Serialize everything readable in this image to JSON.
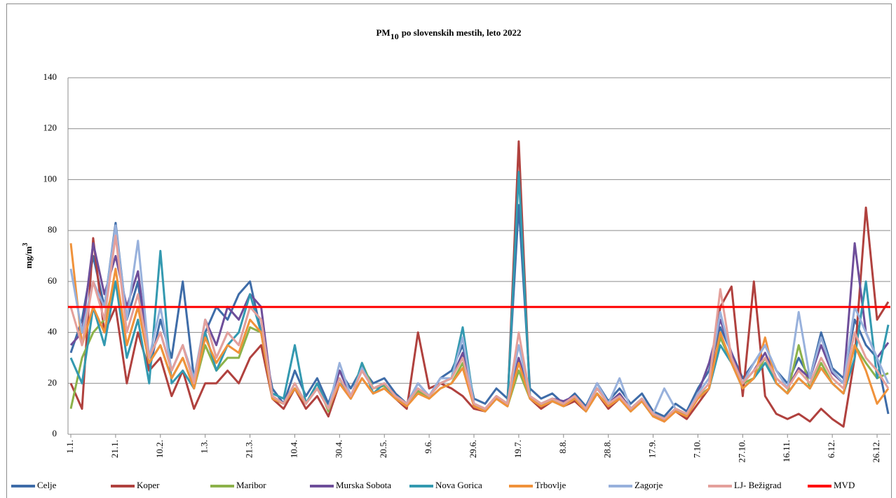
{
  "chart_data": {
    "type": "line",
    "title_parts": [
      "PM",
      "10",
      "po slovenskih mestih,  leto 2022"
    ],
    "y_label_parts": [
      "mg/m",
      "3"
    ],
    "ylim": [
      0,
      140
    ],
    "yticks": [
      0,
      20,
      40,
      60,
      80,
      100,
      120,
      140
    ],
    "categories": [
      "1.1.",
      null,
      null,
      null,
      "21.1.",
      null,
      null,
      null,
      "10.2.",
      null,
      null,
      null,
      "1.3.",
      null,
      null,
      null,
      "21.3.",
      null,
      null,
      null,
      "10.4.",
      null,
      null,
      null,
      "30.4.",
      null,
      null,
      null,
      "20.5.",
      null,
      null,
      null,
      "9.6.",
      null,
      null,
      null,
      "29.6.",
      null,
      null,
      null,
      "19.7.",
      null,
      null,
      null,
      "8.8.",
      null,
      null,
      null,
      "28.8.",
      null,
      null,
      null,
      "17.9.",
      null,
      null,
      null,
      "7.10.",
      null,
      null,
      null,
      "27.10.",
      null,
      null,
      null,
      "16.11.",
      null,
      null,
      null,
      "6.12.",
      null,
      null,
      null,
      "26.12.",
      null
    ],
    "series": [
      {
        "name": "Celje",
        "color": "#3e6ca8",
        "values": [
          32,
          45,
          70,
          50,
          83,
          45,
          60,
          25,
          45,
          30,
          60,
          22,
          40,
          50,
          45,
          55,
          60,
          40,
          18,
          12,
          25,
          15,
          22,
          12,
          25,
          18,
          26,
          20,
          22,
          16,
          12,
          20,
          15,
          22,
          25,
          35,
          14,
          12,
          18,
          14,
          90,
          18,
          14,
          16,
          12,
          16,
          11,
          20,
          13,
          18,
          12,
          16,
          9,
          7,
          12,
          9,
          18,
          25,
          42,
          32,
          22,
          28,
          35,
          25,
          20,
          30,
          22,
          40,
          26,
          22,
          45,
          35,
          30,
          8
        ]
      },
      {
        "name": "Koper",
        "color": "#b0413e",
        "values": [
          20,
          10,
          77,
          40,
          50,
          20,
          40,
          25,
          30,
          15,
          25,
          10,
          20,
          20,
          25,
          20,
          30,
          35,
          14,
          10,
          18,
          10,
          15,
          7,
          20,
          14,
          22,
          16,
          18,
          14,
          10,
          40,
          18,
          20,
          18,
          15,
          10,
          9,
          14,
          11,
          115,
          14,
          10,
          13,
          11,
          13,
          9,
          16,
          10,
          14,
          9,
          13,
          7,
          5,
          9,
          6,
          12,
          18,
          50,
          58,
          15,
          60,
          15,
          8,
          6,
          8,
          5,
          10,
          6,
          3,
          30,
          89,
          45,
          52
        ]
      },
      {
        "name": "Maribor",
        "color": "#8cb24a",
        "values": [
          10,
          30,
          40,
          45,
          60,
          35,
          50,
          28,
          35,
          22,
          30,
          18,
          35,
          25,
          30,
          30,
          42,
          40,
          14,
          12,
          18,
          12,
          20,
          9,
          22,
          14,
          28,
          18,
          19,
          14,
          11,
          17,
          14,
          18,
          20,
          28,
          11,
          9,
          14,
          11,
          25,
          14,
          11,
          13,
          11,
          14,
          9,
          16,
          11,
          14,
          9,
          13,
          7,
          6,
          9,
          8,
          15,
          18,
          38,
          28,
          20,
          22,
          30,
          20,
          16,
          35,
          18,
          28,
          20,
          16,
          35,
          28,
          22,
          24
        ]
      },
      {
        "name": "Murska Sobota",
        "color": "#6e4e9a",
        "values": [
          35,
          40,
          75,
          55,
          70,
          50,
          64,
          30,
          40,
          25,
          35,
          20,
          45,
          35,
          50,
          45,
          55,
          50,
          15,
          12,
          20,
          12,
          18,
          10,
          25,
          15,
          25,
          18,
          20,
          15,
          12,
          20,
          15,
          20,
          22,
          32,
          12,
          10,
          15,
          12,
          30,
          15,
          12,
          14,
          13,
          15,
          10,
          20,
          12,
          16,
          10,
          14,
          8,
          6,
          10,
          8,
          16,
          28,
          45,
          32,
          20,
          25,
          32,
          22,
          18,
          26,
          22,
          35,
          24,
          20,
          75,
          40,
          30,
          36
        ]
      },
      {
        "name": "Nova Gorica",
        "color": "#3399b0",
        "values": [
          30,
          20,
          50,
          35,
          60,
          30,
          45,
          20,
          72,
          20,
          25,
          18,
          40,
          25,
          35,
          40,
          55,
          40,
          16,
          14,
          35,
          12,
          20,
          10,
          22,
          14,
          28,
          16,
          20,
          14,
          12,
          18,
          15,
          20,
          22,
          42,
          12,
          10,
          14,
          12,
          103,
          15,
          12,
          14,
          12,
          14,
          10,
          18,
          12,
          15,
          10,
          14,
          8,
          6,
          10,
          8,
          14,
          18,
          35,
          28,
          18,
          22,
          28,
          20,
          16,
          22,
          18,
          26,
          20,
          16,
          30,
          60,
          22,
          43
        ]
      },
      {
        "name": "Trbovlje",
        "color": "#f0923a",
        "values": [
          75,
          35,
          50,
          40,
          65,
          35,
          50,
          28,
          35,
          22,
          30,
          18,
          38,
          28,
          35,
          32,
          45,
          40,
          14,
          12,
          18,
          12,
          18,
          10,
          20,
          14,
          22,
          16,
          18,
          14,
          11,
          16,
          14,
          18,
          20,
          26,
          11,
          9,
          14,
          11,
          28,
          14,
          11,
          13,
          11,
          14,
          9,
          16,
          11,
          14,
          9,
          13,
          7,
          5,
          9,
          7,
          14,
          18,
          40,
          28,
          18,
          22,
          38,
          20,
          16,
          22,
          18,
          26,
          20,
          16,
          35,
          25,
          12,
          18
        ]
      },
      {
        "name": "Zagorje",
        "color": "#98b1dc",
        "values": [
          65,
          40,
          60,
          50,
          82,
          45,
          76,
          30,
          50,
          25,
          35,
          22,
          45,
          30,
          40,
          35,
          50,
          45,
          15,
          12,
          20,
          12,
          18,
          10,
          28,
          15,
          26,
          18,
          20,
          15,
          12,
          20,
          15,
          22,
          22,
          38,
          12,
          10,
          15,
          12,
          35,
          15,
          12,
          14,
          12,
          15,
          10,
          20,
          12,
          22,
          10,
          14,
          8,
          18,
          10,
          8,
          16,
          22,
          48,
          30,
          20,
          28,
          35,
          25,
          18,
          48,
          22,
          38,
          25,
          20,
          50,
          40,
          30,
          20
        ]
      },
      {
        "name": "LJ- Bežigrad",
        "color": "#e4a09b",
        "values": [
          50,
          35,
          60,
          45,
          78,
          40,
          55,
          30,
          40,
          25,
          35,
          20,
          45,
          30,
          40,
          35,
          50,
          45,
          15,
          12,
          20,
          12,
          18,
          10,
          22,
          15,
          25,
          18,
          20,
          15,
          12,
          18,
          15,
          20,
          22,
          30,
          12,
          10,
          15,
          12,
          40,
          15,
          12,
          14,
          12,
          15,
          10,
          18,
          12,
          15,
          10,
          14,
          8,
          6,
          10,
          8,
          15,
          20,
          57,
          30,
          20,
          25,
          30,
          22,
          18,
          25,
          20,
          30,
          22,
          18,
          40,
          30,
          25,
          18
        ]
      }
    ],
    "reference_line": {
      "name": "MVD",
      "value": 50,
      "color": "#ff0000"
    },
    "grid": true
  }
}
